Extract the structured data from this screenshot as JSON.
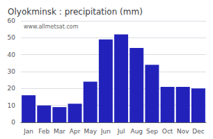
{
  "chart_data": {
    "type": "bar",
    "title": "Olyokminsk : precipitation (mm)",
    "categories": [
      "Jan",
      "Feb",
      "Mar",
      "Apr",
      "May",
      "Jun",
      "Jul",
      "Aug",
      "Sep",
      "Oct",
      "Nov",
      "Dec"
    ],
    "values": [
      16,
      10,
      9,
      11,
      24,
      49,
      52,
      44,
      34,
      21,
      21,
      20
    ],
    "color": "#2222bb",
    "ylim": [
      0,
      60
    ],
    "yticks": [
      0,
      10,
      20,
      30,
      40,
      50,
      60
    ],
    "grid": true,
    "annotation": "www.allmetsat.com"
  }
}
